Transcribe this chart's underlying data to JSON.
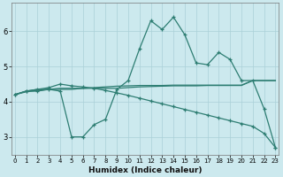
{
  "xlabel": "Humidex (Indice chaleur)",
  "background_color": "#cce9ee",
  "grid_color": "#aad0d8",
  "line_color": "#2d7d72",
  "x_ticks": [
    0,
    1,
    2,
    3,
    4,
    5,
    6,
    7,
    8,
    9,
    10,
    11,
    12,
    13,
    14,
    15,
    16,
    17,
    18,
    19,
    20,
    21,
    22,
    23
  ],
  "y_ticks": [
    3,
    4,
    5,
    6
  ],
  "ylim": [
    2.5,
    6.8
  ],
  "xlim": [
    -0.3,
    23.3
  ],
  "series_wavy": [
    4.2,
    4.3,
    4.3,
    4.35,
    4.3,
    3.0,
    3.0,
    3.35,
    3.5,
    4.35,
    4.6,
    5.5,
    6.3,
    6.05,
    6.4,
    5.9,
    5.1,
    5.05,
    5.4,
    5.2,
    4.6,
    4.6,
    3.8,
    2.7
  ],
  "series_flat1": [
    4.2,
    4.3,
    4.35,
    4.35,
    4.35,
    4.35,
    4.38,
    4.4,
    4.42,
    4.44,
    4.45,
    4.46,
    4.46,
    4.46,
    4.47,
    4.47,
    4.47,
    4.47,
    4.47,
    4.47,
    4.47,
    4.6,
    4.6,
    4.6
  ],
  "series_flat2": [
    4.2,
    4.28,
    4.32,
    4.35,
    4.38,
    4.38,
    4.38,
    4.38,
    4.38,
    4.38,
    4.4,
    4.42,
    4.43,
    4.44,
    4.45,
    4.45,
    4.45,
    4.46,
    4.46,
    4.46,
    4.46,
    4.6,
    4.6,
    4.6
  ],
  "series_diag": [
    4.2,
    4.3,
    4.35,
    4.4,
    4.5,
    4.45,
    4.42,
    4.38,
    4.32,
    4.25,
    4.18,
    4.1,
    4.02,
    3.94,
    3.86,
    3.78,
    3.7,
    3.62,
    3.54,
    3.46,
    3.38,
    3.3,
    3.1,
    2.7
  ]
}
